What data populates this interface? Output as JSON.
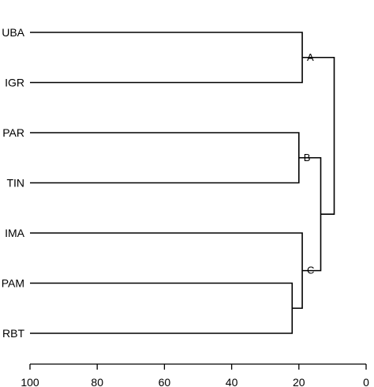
{
  "chart_data": {
    "type": "dendrogram",
    "leaves": [
      "UBA",
      "IGR",
      "PAR",
      "TIN",
      "IMA",
      "PAM",
      "RBT"
    ],
    "merges": [
      {
        "id": "A",
        "label": "A",
        "left": "UBA",
        "right": "IGR",
        "height": 19
      },
      {
        "id": "B",
        "label": "B",
        "left": "PAR",
        "right": "TIN",
        "height": 20
      },
      {
        "id": "PR",
        "label": "",
        "left": "PAM",
        "right": "RBT",
        "height": 22
      },
      {
        "id": "C",
        "label": "C",
        "left": "IMA",
        "right": "PR",
        "height": 19
      },
      {
        "id": "BC",
        "label": "",
        "left": "B",
        "right": "C",
        "height": 13.5
      },
      {
        "id": "ROOT",
        "label": "",
        "left": "A",
        "right": "BC",
        "height": 9.5
      }
    ],
    "x_axis": {
      "ticks": [
        100,
        80,
        60,
        40,
        20,
        0
      ],
      "range": [
        100,
        0
      ]
    }
  }
}
